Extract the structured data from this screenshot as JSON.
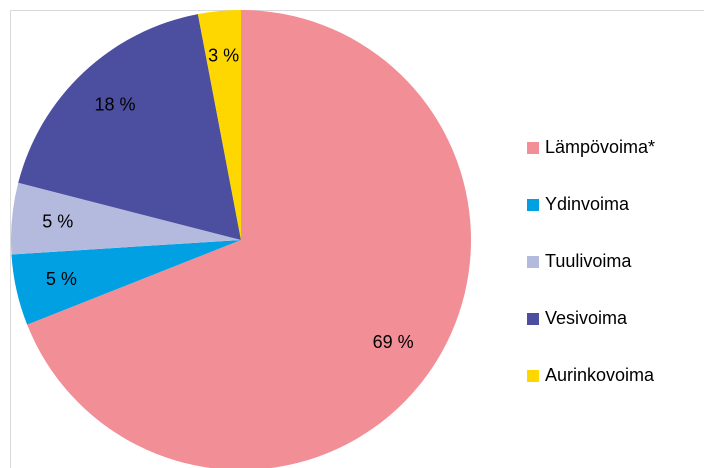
{
  "chart_data": {
    "type": "pie",
    "categories": [
      "Lämpövoima*",
      "Ydinvoima",
      "Tuulivoima",
      "Vesivoima",
      "Aurinkovoima"
    ],
    "values": [
      69,
      5,
      5,
      18,
      3
    ],
    "value_labels": [
      "69 %",
      "5 %",
      "5 %",
      "18 %",
      "3 %"
    ],
    "colors": [
      "#f28e96",
      "#00a0e3",
      "#b4b9de",
      "#4c4ea0",
      "#ffd700"
    ],
    "legend": "right"
  }
}
